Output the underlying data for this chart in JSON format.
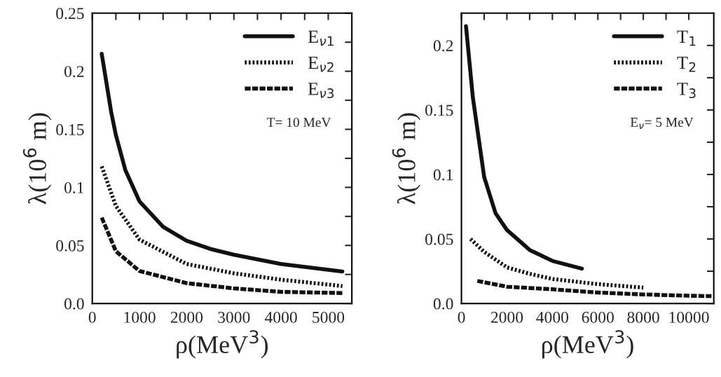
{
  "chart_data": [
    {
      "type": "line",
      "xlabel": "ρ(MeV$^{3}$)",
      "ylabel": "λ(10$^{6}$ m)",
      "annotations": [
        "T= 10 MeV"
      ],
      "xlim": [
        0,
        5500
      ],
      "ylim": [
        0,
        0.25
      ],
      "xticks": [
        0,
        {
          "value": 500,
          "label": null
        },
        1000,
        {
          "value": 1500,
          "label": null
        },
        2000,
        {
          "value": 2500,
          "label": null
        },
        3000,
        {
          "value": 3500,
          "label": null
        },
        4000,
        {
          "value": 4500,
          "label": null
        },
        5000
      ],
      "yticks": [
        {
          "value": 0,
          "label": "0.0"
        },
        {
          "value": 0.025,
          "label": null
        },
        0.05,
        {
          "value": 0.075,
          "label": null
        },
        0.1,
        {
          "value": 0.125,
          "label": null
        },
        0.15,
        {
          "value": 0.175,
          "label": null
        },
        0.2,
        {
          "value": 0.225,
          "label": null
        },
        0.25
      ],
      "legend": "top right",
      "grid": false,
      "series": [
        {
          "name": "E$_{ν1}$",
          "color": "#111111",
          "line_style": "solid",
          "x": [
            200,
            300,
            400,
            500,
            700,
            1000,
            1500,
            2000,
            2500,
            3000,
            4000,
            5300
          ],
          "values": [
            0.215,
            0.19,
            0.165,
            0.145,
            0.115,
            0.088,
            0.066,
            0.054,
            0.047,
            0.042,
            0.034,
            0.0275
          ]
        },
        {
          "name": "E$_{ν2}$",
          "color": "#111111",
          "line_style": "dotted",
          "x": [
            200,
            500,
            1000,
            2000,
            3000,
            4000,
            5300
          ],
          "values": [
            0.118,
            0.084,
            0.055,
            0.034,
            0.026,
            0.0205,
            0.015
          ]
        },
        {
          "name": "E$_{ν3}$",
          "color": "#111111",
          "line_style": "dashed",
          "x": [
            200,
            500,
            1000,
            2000,
            3000,
            4000,
            5300
          ],
          "values": [
            0.074,
            0.045,
            0.028,
            0.0175,
            0.013,
            0.01,
            0.009
          ]
        }
      ]
    },
    {
      "type": "line",
      "xlabel": "ρ(MeV$^{3}$)",
      "ylabel": "λ(10$^{6}$ m)",
      "annotations": [
        "E$_{ν}$= 5 MeV"
      ],
      "xlim": [
        0,
        11100
      ],
      "ylim": [
        0,
        0.225
      ],
      "xticks": [
        0,
        {
          "value": 1000,
          "label": null
        },
        2000,
        {
          "value": 3000,
          "label": null
        },
        4000,
        {
          "value": 5000,
          "label": null
        },
        6000,
        {
          "value": 7000,
          "label": null
        },
        8000,
        {
          "value": 9000,
          "label": null
        },
        10000
      ],
      "yticks": [
        {
          "value": 0,
          "label": "0.0"
        },
        {
          "value": 0.025,
          "label": null
        },
        0.05,
        {
          "value": 0.075,
          "label": null
        },
        0.1,
        {
          "value": 0.125,
          "label": null
        },
        0.15,
        {
          "value": 0.175,
          "label": null
        },
        0.2
      ],
      "legend": "top right",
      "grid": false,
      "series": [
        {
          "name": "T$_{1}$",
          "color": "#111111",
          "line_style": "solid",
          "x": [
            200,
            500,
            1000,
            1500,
            2000,
            3000,
            4000,
            5300
          ],
          "values": [
            0.215,
            0.16,
            0.098,
            0.07,
            0.057,
            0.0415,
            0.033,
            0.027
          ]
        },
        {
          "name": "T$_{2}$",
          "color": "#111111",
          "line_style": "dotted",
          "x": [
            400,
            1000,
            2000,
            3000,
            4000,
            6000,
            8000
          ],
          "values": [
            0.05,
            0.04,
            0.028,
            0.023,
            0.019,
            0.015,
            0.0123
          ]
        },
        {
          "name": "T$_{3}$",
          "color": "#111111",
          "line_style": "dashed",
          "x": [
            700,
            2000,
            4000,
            6000,
            8000,
            10000,
            11000
          ],
          "values": [
            0.0175,
            0.013,
            0.011,
            0.0085,
            0.007,
            0.006,
            0.0057
          ]
        }
      ]
    }
  ]
}
